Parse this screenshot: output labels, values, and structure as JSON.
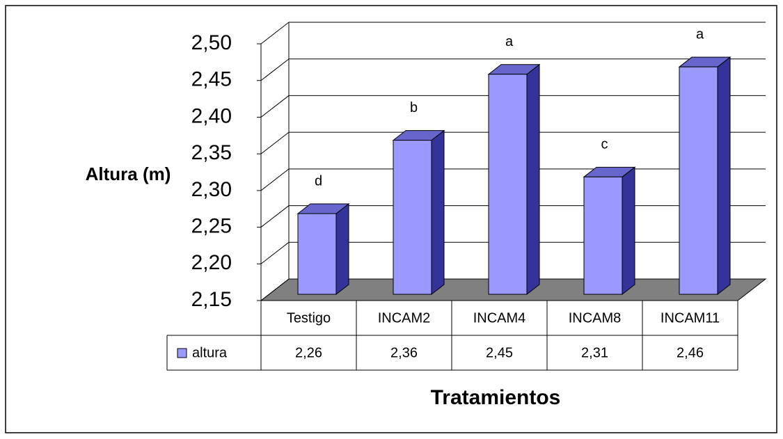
{
  "chart_data": {
    "type": "bar3d",
    "y_label": "Altura (m)",
    "x_label": "Tratamientos",
    "categories": [
      "Testigo",
      "INCAM2",
      "INCAM4",
      "INCAM8",
      "INCAM11"
    ],
    "series": [
      {
        "name": "altura",
        "color": "#9999ff",
        "values": [
          2.26,
          2.36,
          2.45,
          2.31,
          2.46
        ],
        "value_labels": [
          "2,26",
          "2,36",
          "2,45",
          "2,31",
          "2,46"
        ]
      }
    ],
    "annotations": [
      "d",
      "b",
      "a",
      "c",
      "a"
    ],
    "ylim": [
      2.15,
      2.5
    ],
    "yticks": [
      {
        "value": 2.15,
        "label": "2,15"
      },
      {
        "value": 2.2,
        "label": "2,20"
      },
      {
        "value": 2.25,
        "label": "2,25"
      },
      {
        "value": 2.3,
        "label": "2,30"
      },
      {
        "value": 2.35,
        "label": "2,35"
      },
      {
        "value": 2.4,
        "label": "2,40"
      },
      {
        "value": 2.45,
        "label": "2,45"
      },
      {
        "value": 2.5,
        "label": "2,50"
      }
    ],
    "grid": true,
    "data_table": true
  }
}
